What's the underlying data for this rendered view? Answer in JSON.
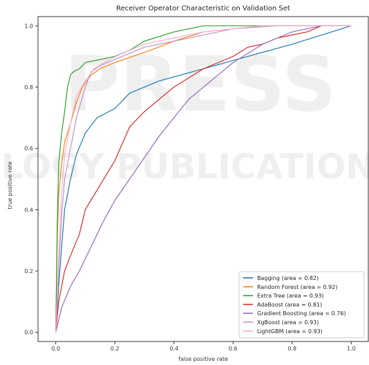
{
  "chart_data": {
    "type": "line",
    "title": "Receiver Operator Characteristic on Validation Set",
    "xlabel": "false positive rate",
    "ylabel": "true positive rate",
    "xlim": [
      -0.06,
      1.06
    ],
    "ylim": [
      -0.03,
      1.03
    ],
    "xticks": [
      0.0,
      0.2,
      0.4,
      0.6,
      0.8,
      1.0
    ],
    "xtick_labels": [
      "0.0",
      "0.2",
      "0.4",
      "0.6",
      "0.8",
      "1.0"
    ],
    "yticks": [
      0.0,
      0.2,
      0.4,
      0.6,
      0.8,
      1.0
    ],
    "ytick_labels": [
      "0.0",
      "0.2",
      "0.4",
      "0.6",
      "0.8",
      "1.0"
    ],
    "grid": false,
    "legend_position": "lower-right",
    "watermark": [
      "PRESS",
      "LOGY PUBLICATIONS"
    ],
    "series": [
      {
        "name": "Bagging (area = 0.82)",
        "color": "#1f77b4",
        "x": [
          0,
          0.01,
          0.02,
          0.03,
          0.05,
          0.07,
          0.1,
          0.14,
          0.2,
          0.25,
          0.35,
          0.5,
          0.65,
          0.8,
          1.0
        ],
        "y": [
          0,
          0.15,
          0.28,
          0.4,
          0.5,
          0.58,
          0.65,
          0.7,
          0.73,
          0.78,
          0.82,
          0.86,
          0.9,
          0.94,
          1.0
        ]
      },
      {
        "name": "Random Forest (area = 0.92)",
        "color": "#ff7f0e",
        "x": [
          0,
          0.005,
          0.01,
          0.02,
          0.03,
          0.05,
          0.07,
          0.09,
          0.12,
          0.15,
          0.2,
          0.26,
          0.32,
          0.4,
          0.5,
          0.6,
          0.7,
          0.75,
          1.0
        ],
        "y": [
          0,
          0.3,
          0.45,
          0.55,
          0.62,
          0.68,
          0.75,
          0.8,
          0.84,
          0.86,
          0.88,
          0.9,
          0.92,
          0.95,
          0.98,
          0.99,
          1.0,
          1.0,
          1.0
        ]
      },
      {
        "name": "Extra Tree (area = 0.93)",
        "color": "#2ca02c",
        "x": [
          0,
          0.005,
          0.01,
          0.02,
          0.03,
          0.04,
          0.05,
          0.06,
          0.08,
          0.1,
          0.15,
          0.2,
          0.25,
          0.3,
          0.4,
          0.5,
          0.55,
          1.0
        ],
        "y": [
          0,
          0.35,
          0.55,
          0.65,
          0.72,
          0.8,
          0.84,
          0.85,
          0.86,
          0.88,
          0.89,
          0.9,
          0.92,
          0.95,
          0.98,
          1.0,
          1.0,
          1.0
        ]
      },
      {
        "name": "AdaBoost (area = 0.81)",
        "color": "#d62728",
        "x": [
          0,
          0.01,
          0.03,
          0.05,
          0.08,
          0.1,
          0.15,
          0.2,
          0.25,
          0.3,
          0.35,
          0.4,
          0.45,
          0.5,
          0.55,
          0.6,
          0.65,
          0.7,
          0.75,
          0.8,
          0.85,
          0.9,
          0.95,
          1.0
        ],
        "y": [
          0,
          0.1,
          0.2,
          0.25,
          0.32,
          0.4,
          0.48,
          0.56,
          0.67,
          0.72,
          0.76,
          0.8,
          0.83,
          0.86,
          0.88,
          0.9,
          0.93,
          0.94,
          0.96,
          0.97,
          0.98,
          1.0,
          1.0,
          1.0
        ]
      },
      {
        "name": "Gradient Boosting (area = 0.76)",
        "color": "#9467bd",
        "x": [
          0,
          0.02,
          0.05,
          0.08,
          0.12,
          0.16,
          0.2,
          0.25,
          0.3,
          0.35,
          0.4,
          0.45,
          0.5,
          0.55,
          0.6,
          0.65,
          0.7,
          0.75,
          0.8,
          0.85,
          0.9,
          1.0
        ],
        "y": [
          0,
          0.08,
          0.15,
          0.2,
          0.28,
          0.36,
          0.43,
          0.5,
          0.57,
          0.64,
          0.7,
          0.76,
          0.8,
          0.84,
          0.88,
          0.91,
          0.94,
          0.96,
          0.98,
          0.99,
          1.0,
          1.0
        ]
      },
      {
        "name": "XgBoost (area = 0.93)",
        "color": "#c090c8",
        "x": [
          0,
          0.01,
          0.02,
          0.03,
          0.05,
          0.07,
          0.1,
          0.12,
          0.15,
          0.2,
          0.25,
          0.3,
          0.4,
          0.5,
          0.6,
          0.75,
          0.95,
          1.0
        ],
        "y": [
          0,
          0.2,
          0.38,
          0.5,
          0.6,
          0.7,
          0.8,
          0.85,
          0.87,
          0.89,
          0.91,
          0.93,
          0.95,
          0.97,
          0.99,
          1.0,
          1.0,
          1.0
        ]
      },
      {
        "name": "LightGBM (area = 0.93)",
        "color": "#f2aed6",
        "x": [
          0,
          0.01,
          0.02,
          0.03,
          0.05,
          0.07,
          0.1,
          0.13,
          0.18,
          0.25,
          0.3,
          0.4,
          0.5,
          0.6,
          0.7,
          0.8,
          1.0
        ],
        "y": [
          0,
          0.25,
          0.45,
          0.58,
          0.68,
          0.77,
          0.82,
          0.86,
          0.89,
          0.92,
          0.94,
          0.96,
          0.98,
          0.99,
          1.0,
          1.0,
          1.0
        ]
      }
    ]
  }
}
